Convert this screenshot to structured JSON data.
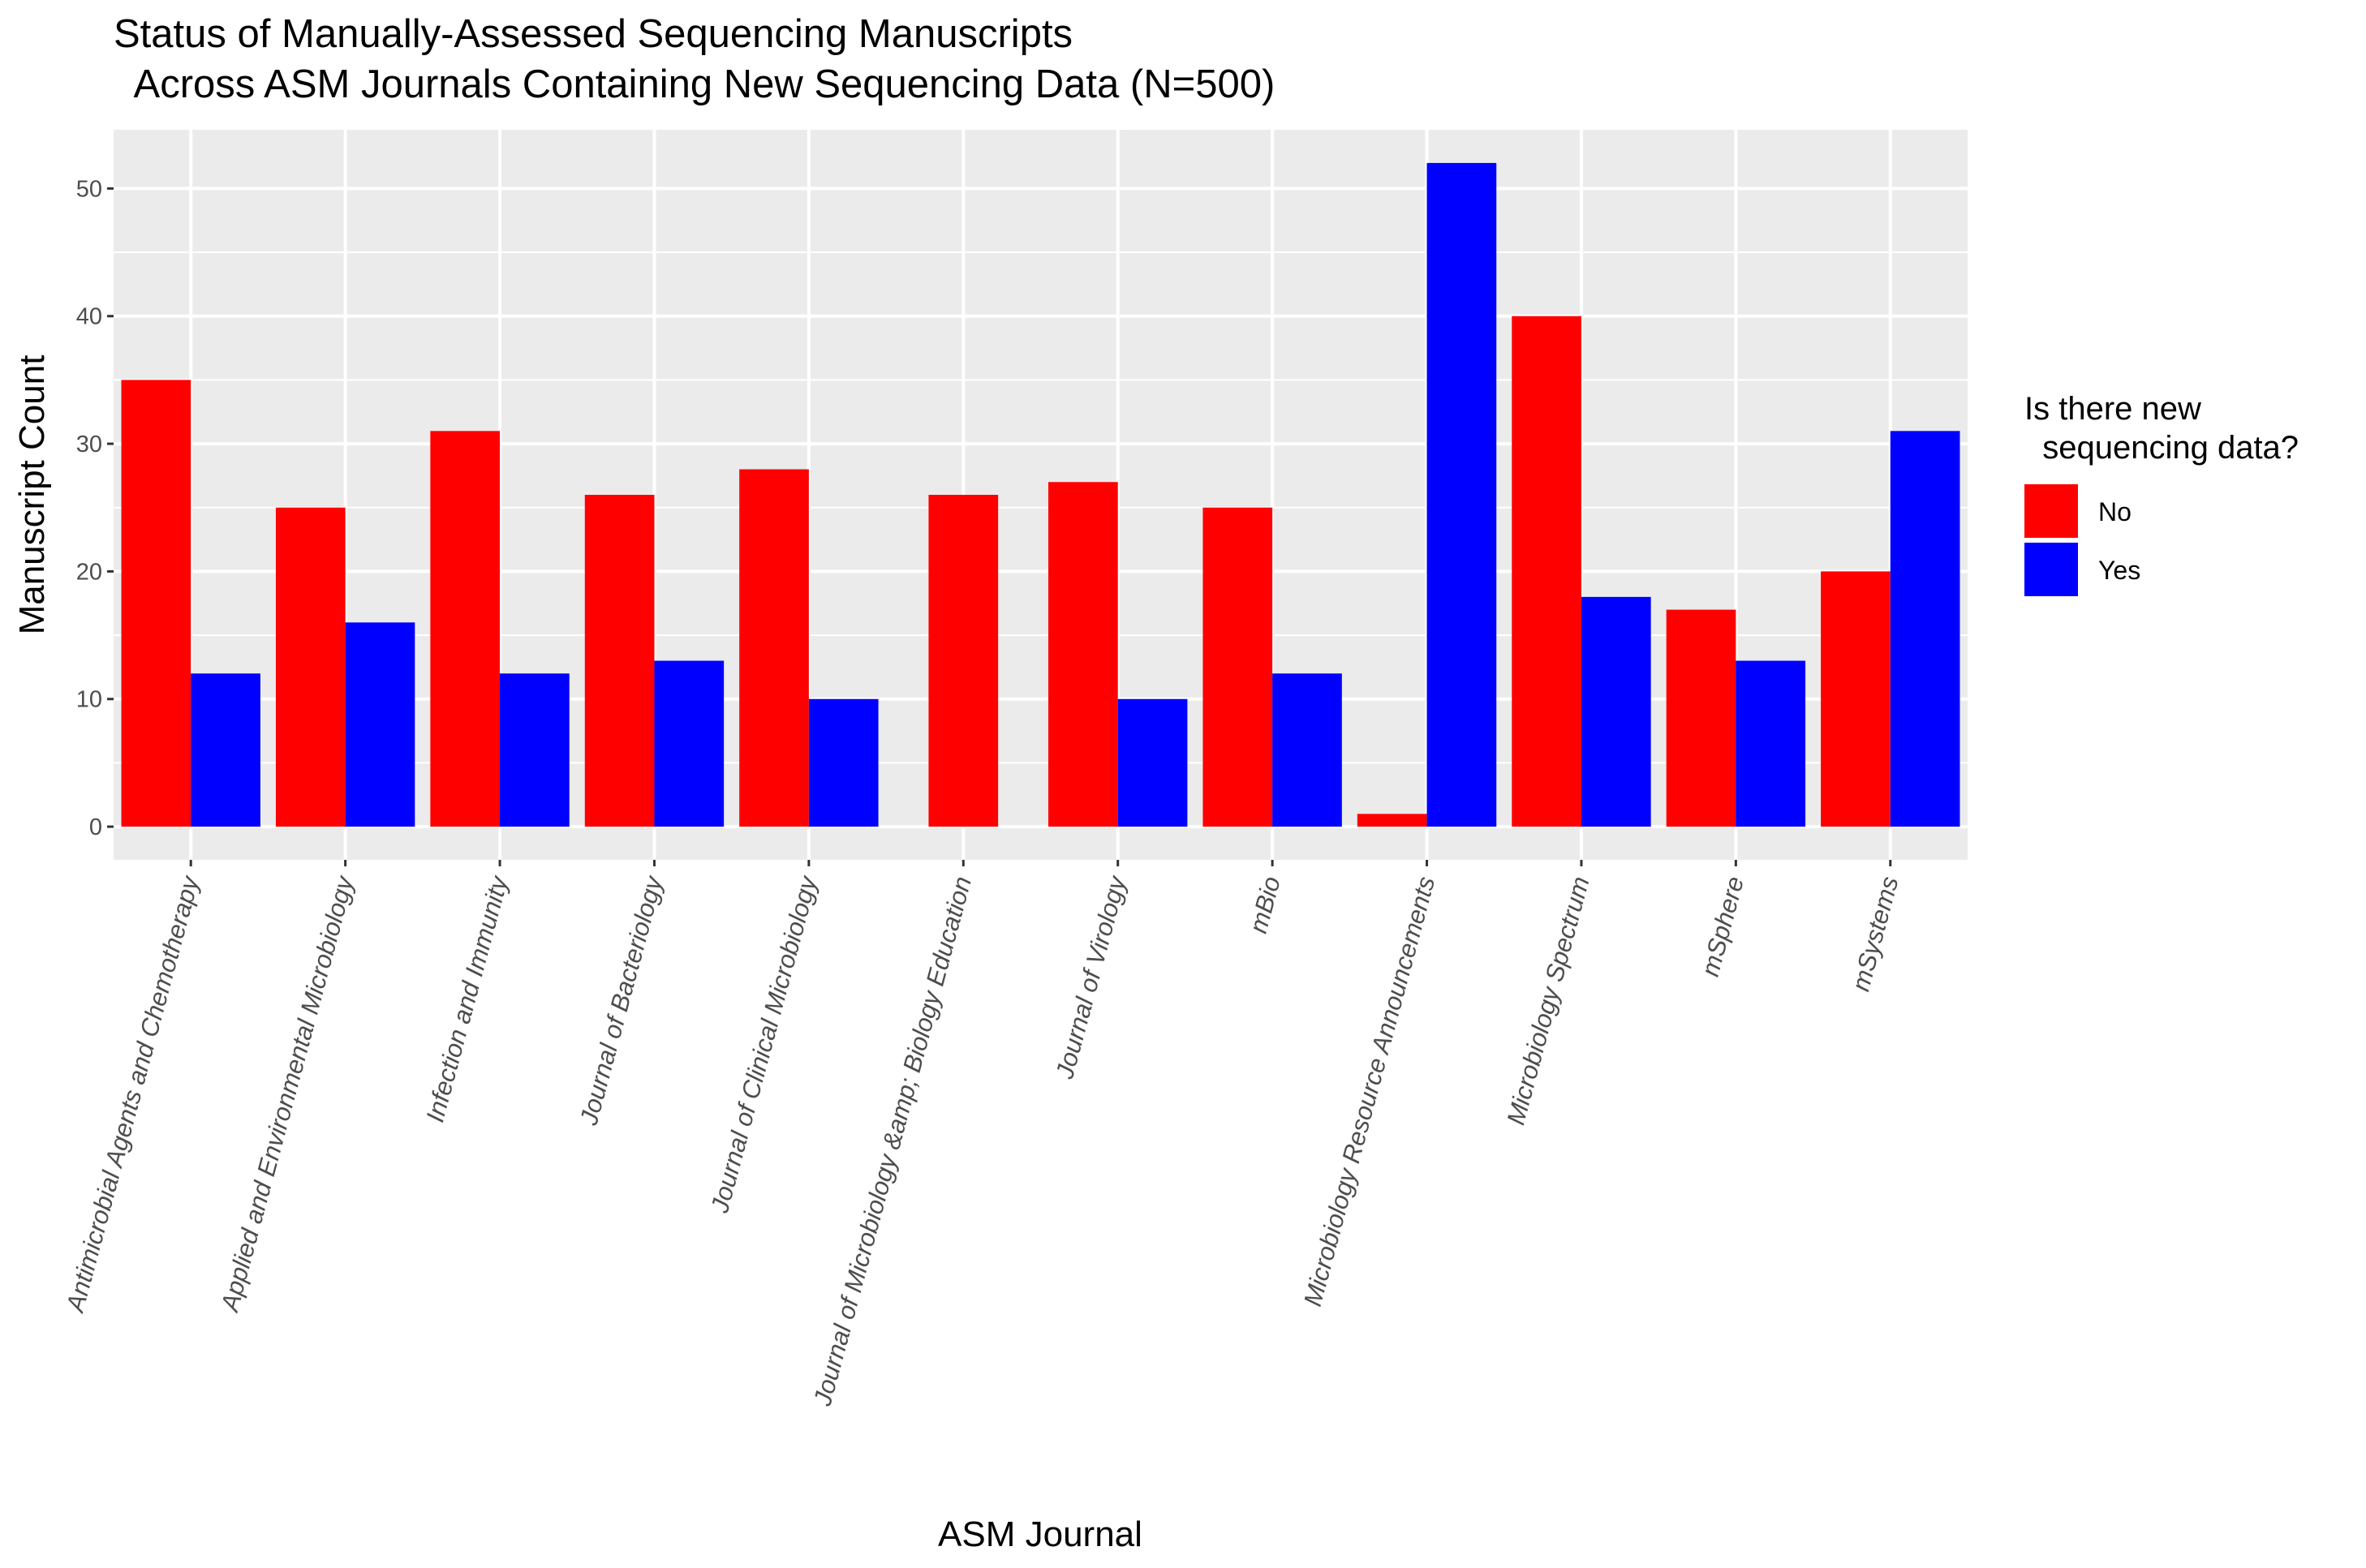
{
  "chart_data": {
    "type": "bar",
    "title_lines": [
      "Status of Manually-Assessed Sequencing Manuscripts",
      "  Across ASM Journals Containing New Sequencing Data (N=500)"
    ],
    "xlabel": "ASM Journal",
    "ylabel": "Manuscript Count",
    "ylim": [
      -2.6,
      54.6
    ],
    "yticks": [
      0,
      10,
      20,
      30,
      40,
      50
    ],
    "grid": true,
    "legend": {
      "title_lines": [
        "Is there new",
        "  sequencing data?"
      ],
      "position": "right"
    },
    "categories": [
      "Antimicrobial Agents and Chemotherapy",
      "Applied and Environmental Microbiology",
      "Infection and Immunity",
      "Journal of Bacteriology",
      "Journal of Clinical Microbiology",
      "Journal of Microbiology &amp; Biology Education",
      "Journal of Virology",
      "mBio",
      "Microbiology Resource Announcements",
      "Microbiology Spectrum",
      "mSphere",
      "mSystems"
    ],
    "series": [
      {
        "name": "No",
        "color": "#ff0000",
        "values": [
          35,
          25,
          31,
          26,
          28,
          26,
          27,
          25,
          1,
          40,
          17,
          20
        ]
      },
      {
        "name": "Yes",
        "color": "#0000ff",
        "values": [
          12,
          16,
          12,
          13,
          10,
          null,
          10,
          12,
          52,
          18,
          13,
          31
        ]
      }
    ],
    "panel_background": "#ebebeb",
    "grid_color": "#ffffff"
  }
}
